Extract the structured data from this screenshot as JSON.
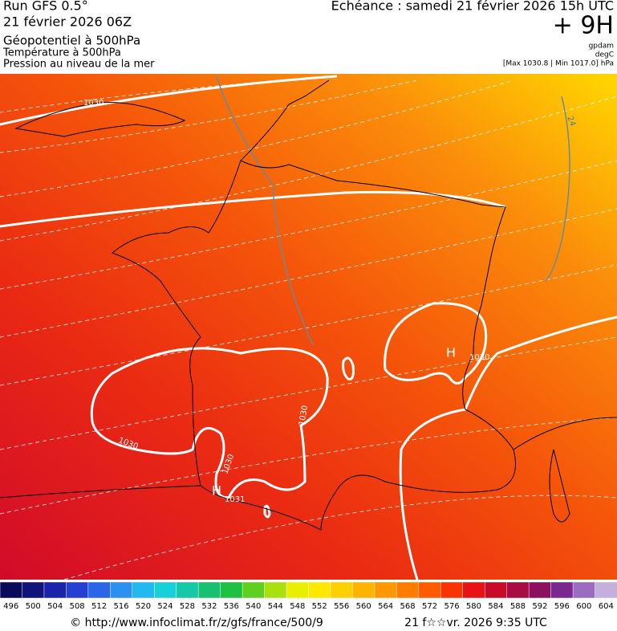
{
  "header": {
    "run": "Run GFS 0.5°",
    "date": "21 février 2026 06Z",
    "title": "Géopotentiel à 500hPa",
    "subtitle1": "Température à 500hPa",
    "subtitle2": "Pression au niveau de la mer",
    "echeance": "Echéance : samedi 21 février 2026 15h UTC",
    "offset": "+ 9H",
    "unit1": "gpdam",
    "unit2": "degC",
    "range": "[Max 1030.8 | Min 1017.0] hPa"
  },
  "map": {
    "labels": [
      "1030",
      "24",
      "1030",
      "H",
      "1030",
      "1030",
      "1030",
      "H",
      "1031"
    ]
  },
  "scale": {
    "labels": [
      "496",
      "500",
      "504",
      "508",
      "512",
      "516",
      "520",
      "524",
      "528",
      "532",
      "536",
      "540",
      "544",
      "548",
      "552",
      "556",
      "560",
      "564",
      "568",
      "572",
      "576",
      "580",
      "584",
      "588",
      "592",
      "596",
      "600",
      "604"
    ],
    "colors": [
      "#0a0a5a",
      "#10137a",
      "#1a24a8",
      "#2440d0",
      "#2c66e8",
      "#2c90f0",
      "#22b8f0",
      "#18d0d8",
      "#14c8a8",
      "#18c070",
      "#20c040",
      "#60d020",
      "#a8e010",
      "#e8f000",
      "#ffe800",
      "#ffd000",
      "#ffb400",
      "#ff9800",
      "#ff7c00",
      "#ff5a00",
      "#f83400",
      "#e81414",
      "#c80c28",
      "#a80c40",
      "#8c1060",
      "#7a2890",
      "#9a6cc0",
      "#c4b0dc"
    ]
  },
  "footer": {
    "url": "© http://www.infoclimat.fr/z/gfs/france/500/9",
    "time": "21 f☆☆vr. 2026  9:35 UTC"
  }
}
